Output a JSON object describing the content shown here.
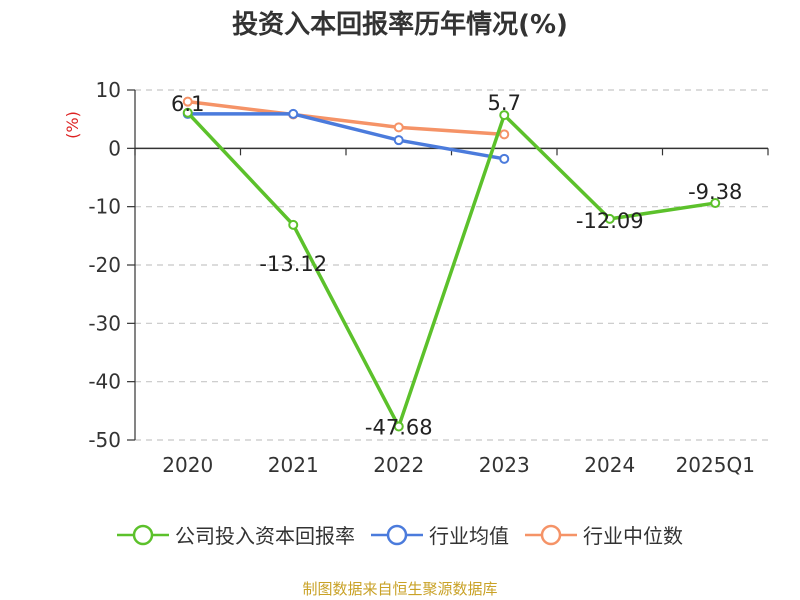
{
  "chart_data": {
    "type": "line",
    "title": "投资入本回报率历年情况(%)",
    "ylabel": "(%)",
    "categories": [
      "2020",
      "2021",
      "2022",
      "2023",
      "2024",
      "2025Q1"
    ],
    "ylim": [
      -50,
      10
    ],
    "yticks": [
      10,
      0,
      -10,
      -20,
      -30,
      -40,
      -50
    ],
    "grid": true,
    "legend_position": "bottom",
    "series": [
      {
        "name": "公司投入资本回报率",
        "color": "#5cc12b",
        "values": [
          6.1,
          -13.12,
          -47.68,
          5.7,
          -12.09,
          -9.38
        ],
        "labels": [
          "6.1",
          "-13.12",
          "-47.68",
          "5.7",
          "-12.09",
          "-9.38"
        ]
      },
      {
        "name": "行业均值",
        "color": "#4b7bdc",
        "values": [
          5.9,
          5.9,
          1.4,
          -1.8,
          null,
          null
        ]
      },
      {
        "name": "行业中位数",
        "color": "#f59367",
        "values": [
          8.0,
          5.8,
          3.6,
          2.4,
          null,
          null
        ]
      }
    ]
  },
  "source": "制图数据来自恒生聚源数据库"
}
